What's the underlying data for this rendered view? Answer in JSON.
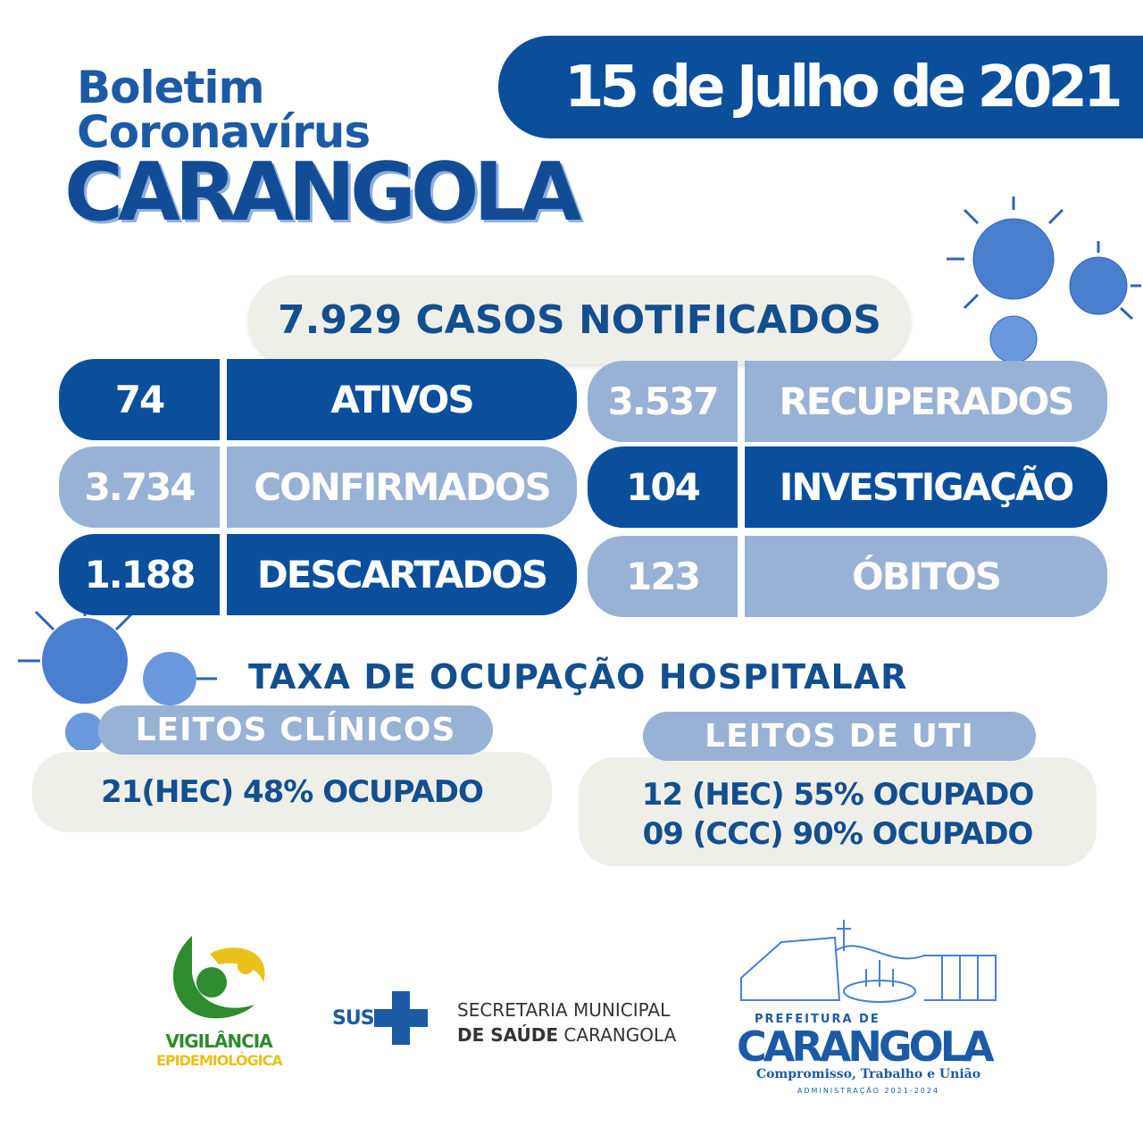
{
  "header": {
    "title_line1": "Boletim",
    "title_line2": "Coronavírus",
    "city": "CARANGOLA",
    "date": "15 de Julho de 2021"
  },
  "casos_notificados": "7.929 CASOS NOTIFICADOS",
  "stats": [
    {
      "value": "74",
      "label": "ATIVOS",
      "style": "dark"
    },
    {
      "value": "3.734",
      "label": "CONFIRMADOS",
      "style": "light"
    },
    {
      "value": "1.188",
      "label": "DESCARTADOS",
      "style": "dark"
    },
    {
      "value": "3.537",
      "label": "RECUPERADOS",
      "style": "light"
    },
    {
      "value": "104",
      "label": "INVESTIGAÇÃO",
      "style": "dark"
    },
    {
      "value": "123",
      "label": "ÓBITOS",
      "style": "light"
    }
  ],
  "ocupacao": {
    "title": "TAXA DE OCUPAÇÃO HOSPITALAR",
    "clinicos": {
      "label": "LEITOS CLÍNICOS",
      "lines": [
        "21(HEC) 48% OCUPADO"
      ]
    },
    "uti": {
      "label": "LEITOS DE UTI",
      "lines": [
        "12 (HEC) 55% OCUPADO",
        "09 (CCC) 90% OCUPADO"
      ]
    }
  },
  "footer": {
    "vigilancia": {
      "line1": "VIGILÂNCIA",
      "line2": "EPIDEMIOLÓGICA"
    },
    "sus": {
      "mark": "SUS",
      "line1": "SECRETARIA MUNICIPAL",
      "line2_bold": "DE SAÚDE",
      "line2": "CARANGOLA"
    },
    "prefeitura": {
      "pre": "PREFEITURA DE",
      "city": "CARANGOLA",
      "slogan": "Compromisso, Trabalho e União",
      "admin": "ADMINISTRAÇÃO 2021-2024"
    }
  },
  "colors": {
    "dark_blue": "#0b4f9c",
    "light_blue": "#97b2d4",
    "panel": "#efefea",
    "text_blue": "#134f8e",
    "green": "#2e8b2e",
    "yellow": "#e8c21a"
  }
}
